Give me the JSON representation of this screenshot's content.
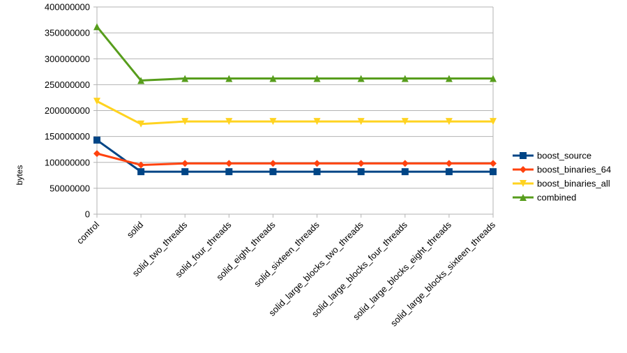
{
  "chart_data": {
    "type": "line",
    "title": "",
    "xlabel": "",
    "ylabel": "bytes",
    "ylim": [
      0,
      400000000
    ],
    "yticks": [
      0,
      50000000,
      100000000,
      150000000,
      200000000,
      250000000,
      300000000,
      350000000,
      400000000
    ],
    "ytick_labels": [
      "0",
      "50000000",
      "100000000",
      "150000000",
      "200000000",
      "250000000",
      "300000000",
      "350000000",
      "400000000"
    ],
    "categories": [
      "control",
      "solid",
      "solid_two_threads",
      "solid_four_threads",
      "solid_eight_threads",
      "solid_sixteen_threads",
      "solid_large_blocks_two_threads",
      "solid_large_blocks_four_threads",
      "solid_large_blocks_eight_threads",
      "solid_large_blocks_sixteen_threads"
    ],
    "grid": "horizontal",
    "legend_position": "right",
    "series": [
      {
        "name": "boost_source",
        "color": "#004586",
        "marker": "square",
        "values": [
          143000000,
          82000000,
          82000000,
          82000000,
          82000000,
          82000000,
          82000000,
          82000000,
          82000000,
          82000000
        ]
      },
      {
        "name": "boost_binaries_64",
        "color": "#ff420e",
        "marker": "diamond",
        "values": [
          117000000,
          95000000,
          98000000,
          98000000,
          98000000,
          98000000,
          98000000,
          98000000,
          98000000,
          98000000
        ]
      },
      {
        "name": "boost_binaries_all",
        "color": "#ffd320",
        "marker": "triangle-down",
        "values": [
          218000000,
          174000000,
          179000000,
          179000000,
          179000000,
          179000000,
          179000000,
          179000000,
          179000000,
          179000000
        ]
      },
      {
        "name": "combined",
        "color": "#579d1c",
        "marker": "triangle-up",
        "values": [
          362000000,
          258000000,
          262000000,
          262000000,
          262000000,
          262000000,
          262000000,
          262000000,
          262000000,
          262000000
        ]
      }
    ]
  }
}
